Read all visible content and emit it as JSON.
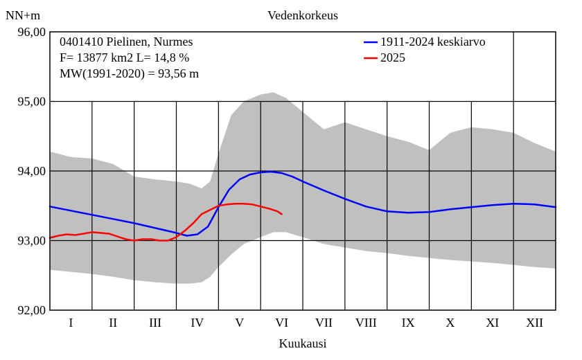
{
  "chart_data": {
    "type": "line",
    "title": "Vedenkorkeus",
    "ylabel": "NN+m",
    "xlabel": "Kuukausi",
    "ylim": [
      92.0,
      96.0
    ],
    "yticks": [
      92.0,
      93.0,
      94.0,
      95.0,
      96.0
    ],
    "ytick_labels": [
      "92,00",
      "93,00",
      "94,00",
      "95,00",
      "96,00"
    ],
    "xlim": [
      0,
      12
    ],
    "months": [
      "I",
      "II",
      "III",
      "IV",
      "V",
      "VI",
      "VII",
      "VIII",
      "IX",
      "X",
      "XI",
      "XII"
    ],
    "grid": true,
    "station_info": [
      "0401410 Pielinen, Nurmes",
      "F=  13877 km2 L=  14,8 %",
      "MW(1991-2020) = 93,56 m"
    ],
    "legend_position": "top-right",
    "colors": {
      "mean": "#0000ff",
      "current": "#ff0000",
      "range": "#c0c0c0"
    },
    "range_band": {
      "x": [
        0,
        0.5,
        1.0,
        1.5,
        2.0,
        2.5,
        3.0,
        3.3,
        3.6,
        3.8,
        4.0,
        4.3,
        4.6,
        5.0,
        5.3,
        5.6,
        6.0,
        6.5,
        7.0,
        7.5,
        8.0,
        8.5,
        9.0,
        9.5,
        10.0,
        10.5,
        11.0,
        11.5,
        12.0
      ],
      "max": [
        94.28,
        94.2,
        94.18,
        94.1,
        93.92,
        93.88,
        93.85,
        93.82,
        93.75,
        93.85,
        94.25,
        94.8,
        95.0,
        95.1,
        95.13,
        95.05,
        94.85,
        94.6,
        94.7,
        94.6,
        94.5,
        94.42,
        94.3,
        94.55,
        94.63,
        94.6,
        94.55,
        94.4,
        94.28
      ],
      "min": [
        92.58,
        92.55,
        92.52,
        92.48,
        92.43,
        92.4,
        92.38,
        92.38,
        92.4,
        92.48,
        92.62,
        92.8,
        92.95,
        93.05,
        93.12,
        93.12,
        93.05,
        92.95,
        92.9,
        92.85,
        92.82,
        92.78,
        92.75,
        92.72,
        92.7,
        92.68,
        92.65,
        92.62,
        92.6
      ]
    },
    "series": [
      {
        "name": "1911-2024 keskiarvo",
        "color": "#0000ff",
        "x": [
          0,
          0.5,
          1.0,
          1.5,
          2.0,
          2.5,
          3.0,
          3.25,
          3.5,
          3.75,
          4.0,
          4.25,
          4.5,
          4.75,
          5.0,
          5.25,
          5.5,
          5.75,
          6.0,
          6.5,
          7.0,
          7.5,
          8.0,
          8.5,
          9.0,
          9.5,
          10.0,
          10.5,
          11.0,
          11.5,
          12.0
        ],
        "values": [
          93.49,
          93.43,
          93.37,
          93.31,
          93.25,
          93.18,
          93.11,
          93.07,
          93.09,
          93.2,
          93.48,
          93.73,
          93.88,
          93.95,
          93.98,
          93.99,
          93.97,
          93.92,
          93.85,
          93.72,
          93.6,
          93.49,
          93.42,
          93.4,
          93.41,
          93.45,
          93.48,
          93.51,
          93.53,
          93.52,
          93.48
        ]
      },
      {
        "name": "2025",
        "color": "#ff0000",
        "x": [
          0,
          0.2,
          0.4,
          0.6,
          0.8,
          1.0,
          1.2,
          1.4,
          1.6,
          1.8,
          2.0,
          2.2,
          2.4,
          2.6,
          2.8,
          3.0,
          3.2,
          3.4,
          3.6,
          3.8,
          4.0,
          4.2,
          4.4,
          4.6,
          4.8,
          5.0,
          5.2,
          5.4,
          5.5
        ],
        "values": [
          93.04,
          93.07,
          93.09,
          93.08,
          93.1,
          93.12,
          93.11,
          93.1,
          93.06,
          93.02,
          93.0,
          93.02,
          93.02,
          93.0,
          93.0,
          93.05,
          93.14,
          93.25,
          93.38,
          93.44,
          93.5,
          93.52,
          93.53,
          93.53,
          93.52,
          93.49,
          93.46,
          93.42,
          93.38
        ]
      }
    ]
  }
}
